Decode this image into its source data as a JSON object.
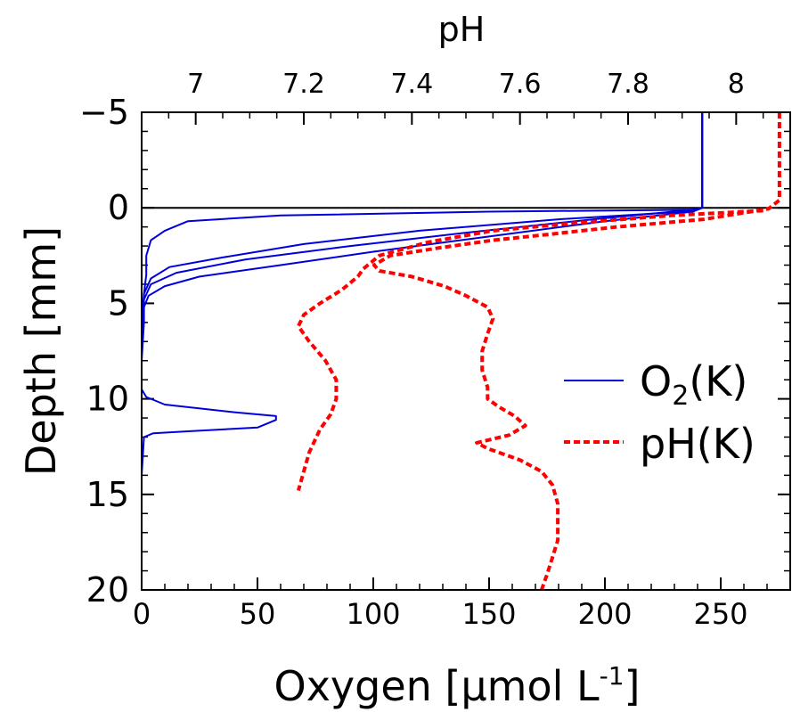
{
  "chart_data": {
    "type": "line",
    "xlabel": "Oxygen [µmol L",
    "xlabel_superscript": "-1",
    "xlabel_suffix": "]",
    "top_xlabel": "pH",
    "ylabel": "Depth [mm]",
    "xlim": [
      0,
      280
    ],
    "top_xlim": [
      6.9,
      8.1
    ],
    "ylim": [
      -5,
      20
    ],
    "y_inverted": true,
    "grid": false,
    "legend_position": "right",
    "x_ticks": [
      0,
      50,
      100,
      150,
      200,
      250
    ],
    "x_tick_labels": [
      "0",
      "50",
      "100",
      "150",
      "200",
      "250"
    ],
    "top_ticks": [
      7.0,
      7.2,
      7.4,
      7.6,
      7.8,
      8.0
    ],
    "top_tick_labels": [
      "7",
      "7.2",
      "7.4",
      "7.6",
      "7.8",
      "8"
    ],
    "y_ticks": [
      -5,
      0,
      5,
      10,
      15,
      20
    ],
    "y_tick_labels": [
      "−5",
      "0",
      "5",
      "10",
      "15",
      "20"
    ],
    "reference_line_depth": 0,
    "series": [
      {
        "name": "O",
        "name_subscript": "2",
        "name_suffix": "(K)",
        "axis": "bottom",
        "color": "#0000dd",
        "style": "solid",
        "points": [
          [
            242,
            -5
          ],
          [
            242,
            -2
          ],
          [
            242,
            0
          ],
          [
            240,
            0.1
          ],
          [
            150,
            0.2
          ],
          [
            60,
            0.4
          ],
          [
            20,
            0.7
          ],
          [
            10,
            1.2
          ],
          [
            4,
            1.7
          ],
          [
            2,
            2.5
          ],
          [
            2,
            3.5
          ],
          [
            1,
            4.5
          ],
          [
            1,
            6
          ],
          [
            0,
            8
          ],
          [
            0,
            9.5
          ],
          [
            2,
            9.9
          ],
          [
            10,
            10.3
          ],
          [
            40,
            10.7
          ],
          [
            58,
            10.9
          ],
          [
            58,
            11.1
          ],
          [
            50,
            11.5
          ],
          [
            20,
            11.7
          ],
          [
            5,
            11.8
          ],
          [
            1,
            12
          ],
          [
            0,
            14
          ],
          [
            0,
            20
          ]
        ]
      },
      {
        "name": "",
        "axis": "bottom",
        "color": "#0000dd",
        "style": "solid",
        "points": [
          [
            242,
            -5
          ],
          [
            242,
            -2
          ],
          [
            242,
            0
          ],
          [
            235,
            0.2
          ],
          [
            180,
            0.6
          ],
          [
            120,
            1.2
          ],
          [
            70,
            1.9
          ],
          [
            35,
            2.6
          ],
          [
            12,
            3.1
          ],
          [
            4,
            3.7
          ],
          [
            1,
            4.5
          ],
          [
            0,
            6
          ],
          [
            0,
            9.5
          ]
        ]
      },
      {
        "name": "",
        "axis": "bottom",
        "color": "#0000dd",
        "style": "solid",
        "points": [
          [
            242,
            -5
          ],
          [
            242,
            -2
          ],
          [
            242,
            0
          ],
          [
            238,
            0.1
          ],
          [
            195,
            0.6
          ],
          [
            140,
            1.3
          ],
          [
            90,
            2.0
          ],
          [
            45,
            2.7
          ],
          [
            15,
            3.4
          ],
          [
            4,
            4.0
          ],
          [
            1,
            4.8
          ],
          [
            0,
            6
          ]
        ]
      },
      {
        "name": "",
        "axis": "bottom",
        "color": "#0000dd",
        "style": "solid",
        "points": [
          [
            242,
            -5
          ],
          [
            242,
            -2
          ],
          [
            242,
            0
          ],
          [
            238,
            0.2
          ],
          [
            200,
            0.7
          ],
          [
            150,
            1.5
          ],
          [
            100,
            2.3
          ],
          [
            60,
            3.0
          ],
          [
            25,
            3.6
          ],
          [
            10,
            4.1
          ],
          [
            3,
            4.6
          ],
          [
            1,
            5.2
          ],
          [
            0,
            6.5
          ]
        ]
      },
      {
        "name": "pH",
        "name_suffix": "(K)",
        "axis": "top",
        "color": "#ff0000",
        "style": "dashed",
        "points": [
          [
            8.08,
            -5
          ],
          [
            8.08,
            -3
          ],
          [
            8.08,
            -1
          ],
          [
            8.08,
            -0.4
          ],
          [
            8.06,
            0.05
          ],
          [
            7.94,
            0.6
          ],
          [
            7.78,
            1.0
          ],
          [
            7.65,
            1.4
          ],
          [
            7.55,
            1.7
          ],
          [
            7.45,
            2.1
          ],
          [
            7.36,
            2.5
          ],
          [
            7.33,
            3.0
          ],
          [
            7.34,
            3.3
          ],
          [
            7.4,
            3.6
          ],
          [
            7.46,
            4.1
          ],
          [
            7.5,
            4.6
          ],
          [
            7.54,
            5.2
          ],
          [
            7.55,
            5.8
          ],
          [
            7.54,
            6.6
          ],
          [
            7.53,
            7.5
          ],
          [
            7.53,
            8.5
          ],
          [
            7.54,
            9.4
          ],
          [
            7.54,
            10.0
          ],
          [
            7.56,
            10.4
          ],
          [
            7.59,
            10.9
          ],
          [
            7.61,
            11.4
          ],
          [
            7.58,
            11.9
          ],
          [
            7.52,
            12.3
          ],
          [
            7.54,
            12.6
          ],
          [
            7.6,
            13.2
          ],
          [
            7.64,
            13.8
          ],
          [
            7.66,
            14.5
          ],
          [
            7.67,
            15.5
          ],
          [
            7.67,
            16.5
          ],
          [
            7.67,
            17.4
          ],
          [
            7.66,
            18.3
          ],
          [
            7.65,
            19.2
          ],
          [
            7.64,
            20
          ]
        ]
      },
      {
        "name": "",
        "axis": "top",
        "color": "#ff0000",
        "style": "dashed",
        "points": [
          [
            8.05,
            0.15
          ],
          [
            7.88,
            0.4
          ],
          [
            7.7,
            0.8
          ],
          [
            7.55,
            1.2
          ],
          [
            7.43,
            1.8
          ],
          [
            7.34,
            2.5
          ],
          [
            7.31,
            3.2
          ],
          [
            7.3,
            3.6
          ],
          [
            7.27,
            4.3
          ],
          [
            7.23,
            5.0
          ],
          [
            7.2,
            5.6
          ],
          [
            7.19,
            6.2
          ],
          [
            7.21,
            7.0
          ],
          [
            7.24,
            8.0
          ],
          [
            7.26,
            9.0
          ],
          [
            7.26,
            10.0
          ],
          [
            7.25,
            10.8
          ],
          [
            7.23,
            11.6
          ],
          [
            7.21,
            12.8
          ],
          [
            7.2,
            13.8
          ],
          [
            7.19,
            14.8
          ]
        ]
      }
    ],
    "legend": {
      "o2_label": "O",
      "o2_sub": "2",
      "o2_suffix": "(K)",
      "ph_label": "pH(K)"
    }
  }
}
